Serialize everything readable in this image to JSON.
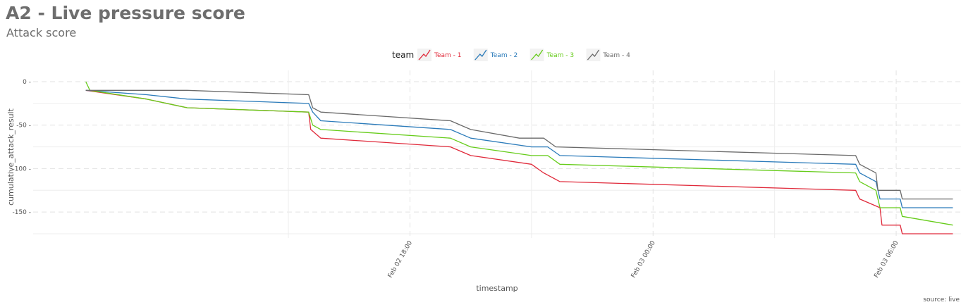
{
  "chart_data": {
    "type": "line",
    "title": "A2 - Live pressure score",
    "subtitle": "Attack score",
    "xlabel": "timestamp",
    "ylabel": "cumulative_attack_result",
    "caption": "source: live",
    "legend": {
      "title": "team",
      "position": "top"
    },
    "grid": true,
    "x_ticks": [
      {
        "label": "Feb 02 18:00",
        "hour": 18
      },
      {
        "label": "Feb 03 00:00",
        "hour": 24
      },
      {
        "label": "Feb 03 06:00",
        "hour": 30
      }
    ],
    "xlim_hours": [
      8.7,
      31.6
    ],
    "y_ticks": [
      0,
      -50,
      -100,
      -150
    ],
    "ylim": [
      -175,
      0
    ],
    "series": [
      {
        "name": "Team - 1",
        "color": "#e0293a",
        "points": [
          [
            10.0,
            -10
          ],
          [
            11.5,
            -20
          ],
          [
            12.5,
            -30
          ],
          [
            15.5,
            -35
          ],
          [
            15.55,
            -55
          ],
          [
            15.8,
            -65
          ],
          [
            19.0,
            -75
          ],
          [
            19.5,
            -85
          ],
          [
            21.0,
            -95
          ],
          [
            21.3,
            -105
          ],
          [
            21.7,
            -115
          ],
          [
            29.0,
            -125
          ],
          [
            29.1,
            -135
          ],
          [
            29.6,
            -145
          ],
          [
            29.65,
            -165
          ],
          [
            30.1,
            -165
          ],
          [
            30.15,
            -175
          ],
          [
            31.4,
            -175
          ]
        ]
      },
      {
        "name": "Team - 2",
        "color": "#2b7bba",
        "points": [
          [
            10.0,
            -10
          ],
          [
            11.5,
            -15
          ],
          [
            12.5,
            -20
          ],
          [
            15.5,
            -25
          ],
          [
            15.6,
            -35
          ],
          [
            15.8,
            -45
          ],
          [
            19.0,
            -55
          ],
          [
            19.5,
            -65
          ],
          [
            21.0,
            -75
          ],
          [
            21.4,
            -75
          ],
          [
            21.7,
            -85
          ],
          [
            29.0,
            -95
          ],
          [
            29.1,
            -105
          ],
          [
            29.5,
            -115
          ],
          [
            29.6,
            -135
          ],
          [
            30.1,
            -135
          ],
          [
            30.15,
            -145
          ],
          [
            31.4,
            -145
          ]
        ]
      },
      {
        "name": "Team - 3",
        "color": "#66cc1a",
        "points": [
          [
            10.0,
            0
          ],
          [
            10.1,
            -10
          ],
          [
            11.5,
            -20
          ],
          [
            12.5,
            -30
          ],
          [
            15.5,
            -35
          ],
          [
            15.6,
            -50
          ],
          [
            15.8,
            -55
          ],
          [
            19.0,
            -65
          ],
          [
            19.5,
            -75
          ],
          [
            21.0,
            -85
          ],
          [
            21.4,
            -85
          ],
          [
            21.7,
            -95
          ],
          [
            29.0,
            -105
          ],
          [
            29.1,
            -115
          ],
          [
            29.5,
            -125
          ],
          [
            29.6,
            -145
          ],
          [
            30.1,
            -145
          ],
          [
            30.15,
            -155
          ],
          [
            31.4,
            -165
          ]
        ]
      },
      {
        "name": "Team - 4",
        "color": "#6a6a6a",
        "points": [
          [
            10.0,
            -10
          ],
          [
            12.5,
            -10
          ],
          [
            15.5,
            -15
          ],
          [
            15.6,
            -30
          ],
          [
            15.8,
            -35
          ],
          [
            19.0,
            -45
          ],
          [
            19.5,
            -55
          ],
          [
            20.7,
            -65
          ],
          [
            21.3,
            -65
          ],
          [
            21.6,
            -75
          ],
          [
            29.0,
            -85
          ],
          [
            29.1,
            -95
          ],
          [
            29.5,
            -105
          ],
          [
            29.55,
            -125
          ],
          [
            30.1,
            -125
          ],
          [
            30.15,
            -135
          ],
          [
            31.4,
            -135
          ]
        ]
      }
    ]
  }
}
